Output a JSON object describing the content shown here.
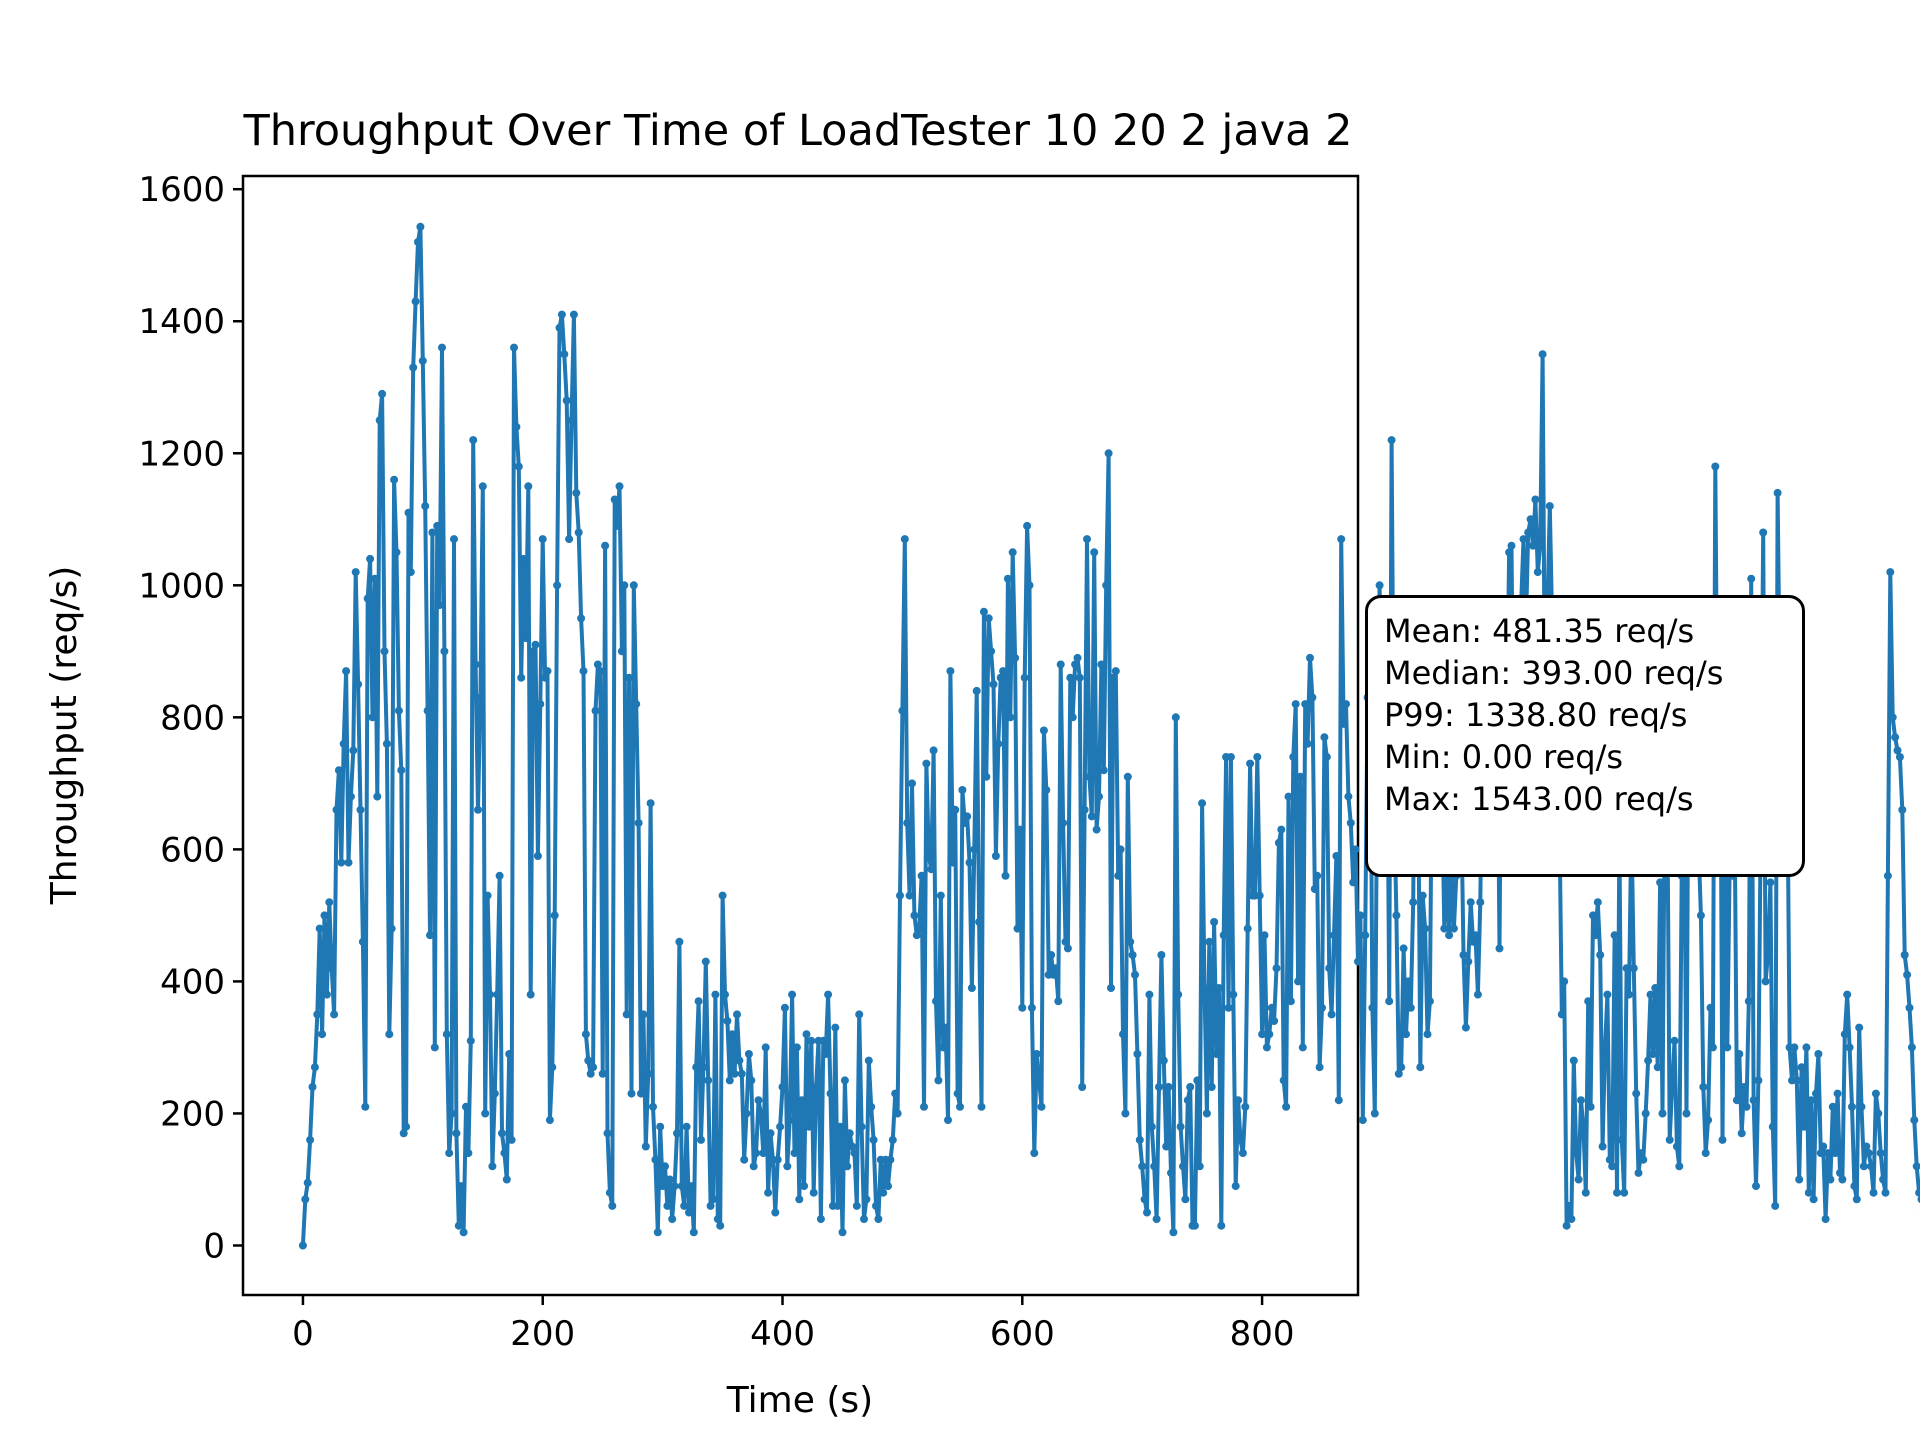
{
  "chart_data": {
    "type": "line",
    "title": "Throughput Over Time of LoadTester 10 20 2 java 2",
    "xlabel": "Time (s)",
    "ylabel": "Throughput (req/s)",
    "xlim": [
      -50,
      880
    ],
    "ylim": [
      -75,
      1620
    ],
    "xticks": [
      0,
      200,
      400,
      600,
      800
    ],
    "yticks": [
      0,
      200,
      400,
      600,
      800,
      1000,
      1200,
      1400,
      1600
    ],
    "grid": false,
    "legend": "none",
    "series_color": "#1f77b4",
    "x_start": 0,
    "x_step": 2,
    "series": [
      {
        "values": [
          0,
          70,
          95,
          160,
          240,
          270,
          350,
          480,
          320,
          500,
          380,
          520,
          420,
          350,
          660,
          720,
          580,
          760,
          870,
          580,
          680,
          750,
          1020,
          850,
          660,
          460,
          210,
          980,
          1040,
          800,
          1010,
          680,
          1250,
          1290,
          900,
          760,
          320,
          480,
          1160,
          1050,
          810,
          720,
          170,
          180,
          1110,
          1020,
          1330,
          1430,
          1520,
          1543,
          1340,
          1120,
          810,
          470,
          1080,
          300,
          1090,
          970,
          1360,
          900,
          320,
          140,
          200,
          1070,
          170,
          30,
          90,
          20,
          210,
          140,
          310,
          1220,
          880,
          660,
          830,
          1150,
          200,
          530,
          380,
          120,
          230,
          380,
          560,
          170,
          140,
          100,
          290,
          160,
          1360,
          1240,
          1180,
          860,
          1040,
          920,
          1150,
          380,
          900,
          910,
          590,
          820,
          1070,
          860,
          870,
          190,
          270,
          500,
          1000,
          1390,
          1410,
          1350,
          1280,
          1070,
          1250,
          1410,
          1140,
          1080,
          950,
          870,
          320,
          280,
          260,
          270,
          810,
          880,
          870,
          260,
          1060,
          170,
          80,
          60,
          1130,
          1090,
          1150,
          900,
          1000,
          350,
          860,
          230,
          1000,
          820,
          640,
          230,
          350,
          150,
          260,
          670,
          210,
          130,
          20,
          180,
          90,
          120,
          60,
          100,
          40,
          90,
          170,
          460,
          90,
          60,
          180,
          50,
          90,
          20,
          270,
          370,
          160,
          270,
          430,
          250,
          60,
          70,
          380,
          40,
          30,
          530,
          380,
          340,
          250,
          320,
          260,
          350,
          280,
          260,
          130,
          200,
          290,
          250,
          120,
          140,
          220,
          200,
          140,
          300,
          80,
          170,
          130,
          50,
          130,
          180,
          240,
          360,
          120,
          190,
          380,
          140,
          300,
          70,
          220,
          90,
          320,
          180,
          310,
          80,
          240,
          310,
          40,
          310,
          290,
          380,
          230,
          60,
          330,
          60,
          180,
          20,
          250,
          120,
          170,
          150,
          140,
          60,
          350,
          180,
          40,
          70,
          280,
          210,
          160,
          60,
          40,
          130,
          80,
          130,
          90,
          130,
          160,
          230,
          200,
          530,
          810,
          1070,
          640,
          530,
          700,
          500,
          470,
          480,
          560,
          210,
          730,
          590,
          570,
          750,
          370,
          250,
          530,
          300,
          330,
          190,
          870,
          580,
          660,
          230,
          210,
          690,
          640,
          650,
          580,
          390,
          600,
          840,
          490,
          210,
          960,
          710,
          950,
          900,
          850,
          590,
          760,
          860,
          870,
          560,
          1010,
          800,
          1050,
          890,
          480,
          630,
          360,
          860,
          1090,
          1000,
          360,
          140,
          290,
          250,
          210,
          780,
          690,
          410,
          440,
          410,
          420,
          370,
          880,
          640,
          460,
          450,
          860,
          800,
          880,
          890,
          860,
          240,
          660,
          1070,
          710,
          650,
          1050,
          630,
          680,
          880,
          720,
          1000,
          1200,
          390,
          860,
          870,
          560,
          600,
          320,
          200,
          710,
          460,
          440,
          410,
          290,
          160,
          120,
          70,
          50,
          380,
          180,
          120,
          40,
          240,
          440,
          280,
          150,
          240,
          110,
          20,
          800,
          380,
          180,
          120,
          70,
          220,
          240,
          30,
          30,
          250,
          120,
          670,
          390,
          200,
          460,
          240,
          490,
          290,
          390,
          30,
          470,
          740,
          360,
          740,
          380,
          90,
          220,
          160,
          140,
          210,
          480,
          730,
          530,
          530,
          740,
          530,
          320,
          470,
          300,
          320,
          360,
          340,
          420,
          610,
          630,
          250,
          210,
          680,
          370,
          740,
          820,
          400,
          710,
          300,
          820,
          760,
          890,
          830,
          540,
          560,
          270,
          360,
          770,
          740,
          420,
          350,
          470,
          590,
          220,
          1070,
          790,
          820,
          680,
          640,
          550,
          600,
          430,
          500,
          190,
          470,
          830,
          910,
          360,
          200,
          730,
          1000,
          740,
          680,
          890,
          370,
          1220,
          680,
          500,
          260,
          270,
          450,
          320,
          400,
          360,
          520,
          940,
          770,
          270,
          530,
          480,
          320,
          370,
          810,
          720,
          650,
          710,
          700,
          480,
          580,
          470,
          570,
          480,
          560,
          840,
          680,
          440,
          330,
          430,
          520,
          460,
          470,
          380,
          520,
          810,
          860,
          710,
          920,
          820,
          680,
          860,
          450,
          950,
          960,
          750,
          1050,
          1060,
          680,
          880,
          720,
          970,
          1070,
          930,
          1080,
          1100,
          1060,
          1130,
          1020,
          1060,
          1350,
          790,
          960,
          1120,
          940,
          830,
          620,
          650,
          350,
          400,
          30,
          60,
          40,
          280,
          140,
          100,
          220,
          180,
          80,
          370,
          210,
          500,
          470,
          520,
          440,
          150,
          300,
          380,
          130,
          120,
          470,
          80,
          620,
          160,
          80,
          420,
          380,
          640,
          420,
          230,
          110,
          140,
          130,
          200,
          280,
          380,
          290,
          390,
          270,
          550,
          200,
          720,
          680,
          160,
          240,
          310,
          150,
          120,
          560,
          670,
          200,
          920,
          650,
          700,
          740,
          610,
          500,
          240,
          140,
          190,
          360,
          300,
          1180,
          710,
          880,
          160,
          700,
          300,
          580,
          560,
          670,
          220,
          290,
          170,
          240,
          210,
          370,
          1010,
          220,
          90,
          250,
          650,
          1080,
          400,
          440,
          550,
          180,
          60,
          1140,
          820,
          920,
          760,
          740,
          300,
          250,
          300,
          250,
          100,
          270,
          180,
          300,
          80,
          220,
          70,
          230,
          290,
          140,
          150,
          40,
          140,
          100,
          210,
          140,
          230,
          110,
          100,
          320,
          380,
          300,
          210,
          90,
          70,
          330,
          210,
          120,
          150,
          140,
          120,
          80,
          230,
          200,
          140,
          100,
          80,
          560,
          1020,
          800,
          770,
          750,
          740,
          660,
          440,
          410,
          360,
          300,
          190,
          120,
          80,
          70,
          50
        ]
      }
    ]
  },
  "stats_box": {
    "mean": "Mean: 481.35 req/s",
    "median": "Median: 393.00 req/s",
    "p99": "P99: 1338.80 req/s",
    "min": "Min: 0.00 req/s",
    "max": "Max: 1543.00 req/s"
  }
}
